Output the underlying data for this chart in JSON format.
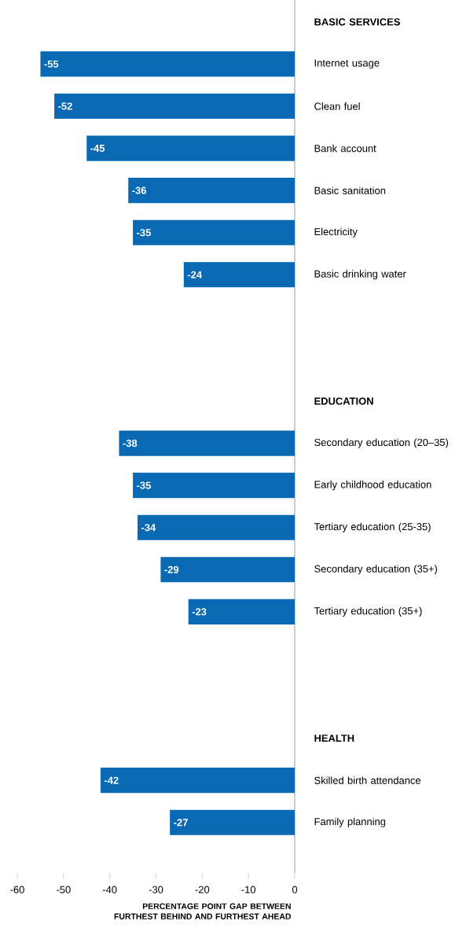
{
  "chart_data": {
    "type": "bar",
    "orientation": "horizontal",
    "categories": [
      "BASIC SERVICES",
      "Internet usage",
      "Clean fuel",
      "Bank account",
      "Basic sanitation",
      "Electricity",
      "Basic drinking water",
      null,
      null,
      "EDUCATION",
      "Secondary education (20–35)",
      "Early childhood education",
      "Tertiary education (25-35)",
      "Secondary education (35+)",
      "Tertiary education (35+)",
      null,
      null,
      "HEALTH",
      "Skilled birth attendance",
      "Family planning"
    ],
    "values": [
      null,
      -55,
      -52,
      -45,
      -36,
      -35,
      -24,
      null,
      null,
      null,
      -38,
      -35,
      -34,
      -29,
      -23,
      null,
      null,
      null,
      -42,
      -27
    ],
    "color": "#0a69b3",
    "data_labels": true,
    "xlim": [
      -60,
      0
    ],
    "xticks": [
      -60,
      -50,
      -40,
      -30,
      -20,
      -10,
      0
    ],
    "xlabel": "PERCENTAGE POINT GAP BETWEEN FURTHEST BEHIND AND FURTHEST AHEAD",
    "grid": false
  }
}
